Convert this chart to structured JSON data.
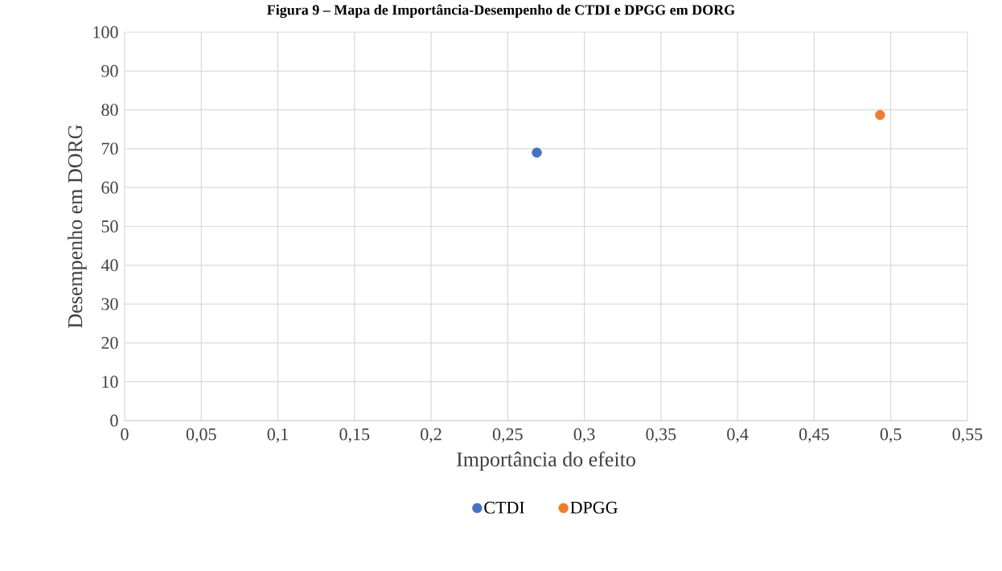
{
  "chart_data": {
    "type": "scatter",
    "title": "Figura 9 – Mapa de Importância-Desempenho de CTDI e DPGG em DORG",
    "xlabel": "Importância do efeito",
    "ylabel": "Desempenho em DORG",
    "series": [
      {
        "name": "CTDI",
        "color": "#4472c4",
        "x": [
          0.269
        ],
        "values": [
          69
        ]
      },
      {
        "name": "DPGG",
        "color": "#ed7d31",
        "x": [
          0.493
        ],
        "values": [
          78.7
        ]
      }
    ],
    "xlim": [
      0,
      0.55
    ],
    "ylim": [
      0,
      100
    ],
    "xticks": [
      0,
      {
        "value": 0.05,
        "label": "0,05"
      },
      {
        "value": 0.1,
        "label": "0,1"
      },
      {
        "value": 0.15,
        "label": "0,15"
      },
      {
        "value": 0.2,
        "label": "0,2"
      },
      {
        "value": 0.25,
        "label": "0,25"
      },
      {
        "value": 0.3,
        "label": "0,3"
      },
      {
        "value": 0.35,
        "label": "0,35"
      },
      {
        "value": 0.4,
        "label": "0,4"
      },
      {
        "value": 0.45,
        "label": "0,45"
      },
      {
        "value": 0.5,
        "label": "0,5"
      },
      {
        "value": 0.55,
        "label": "0,55"
      }
    ],
    "yticks": [
      0,
      10,
      20,
      30,
      40,
      50,
      60,
      70,
      80,
      90,
      100
    ],
    "grid": true,
    "legend": "bottom"
  }
}
